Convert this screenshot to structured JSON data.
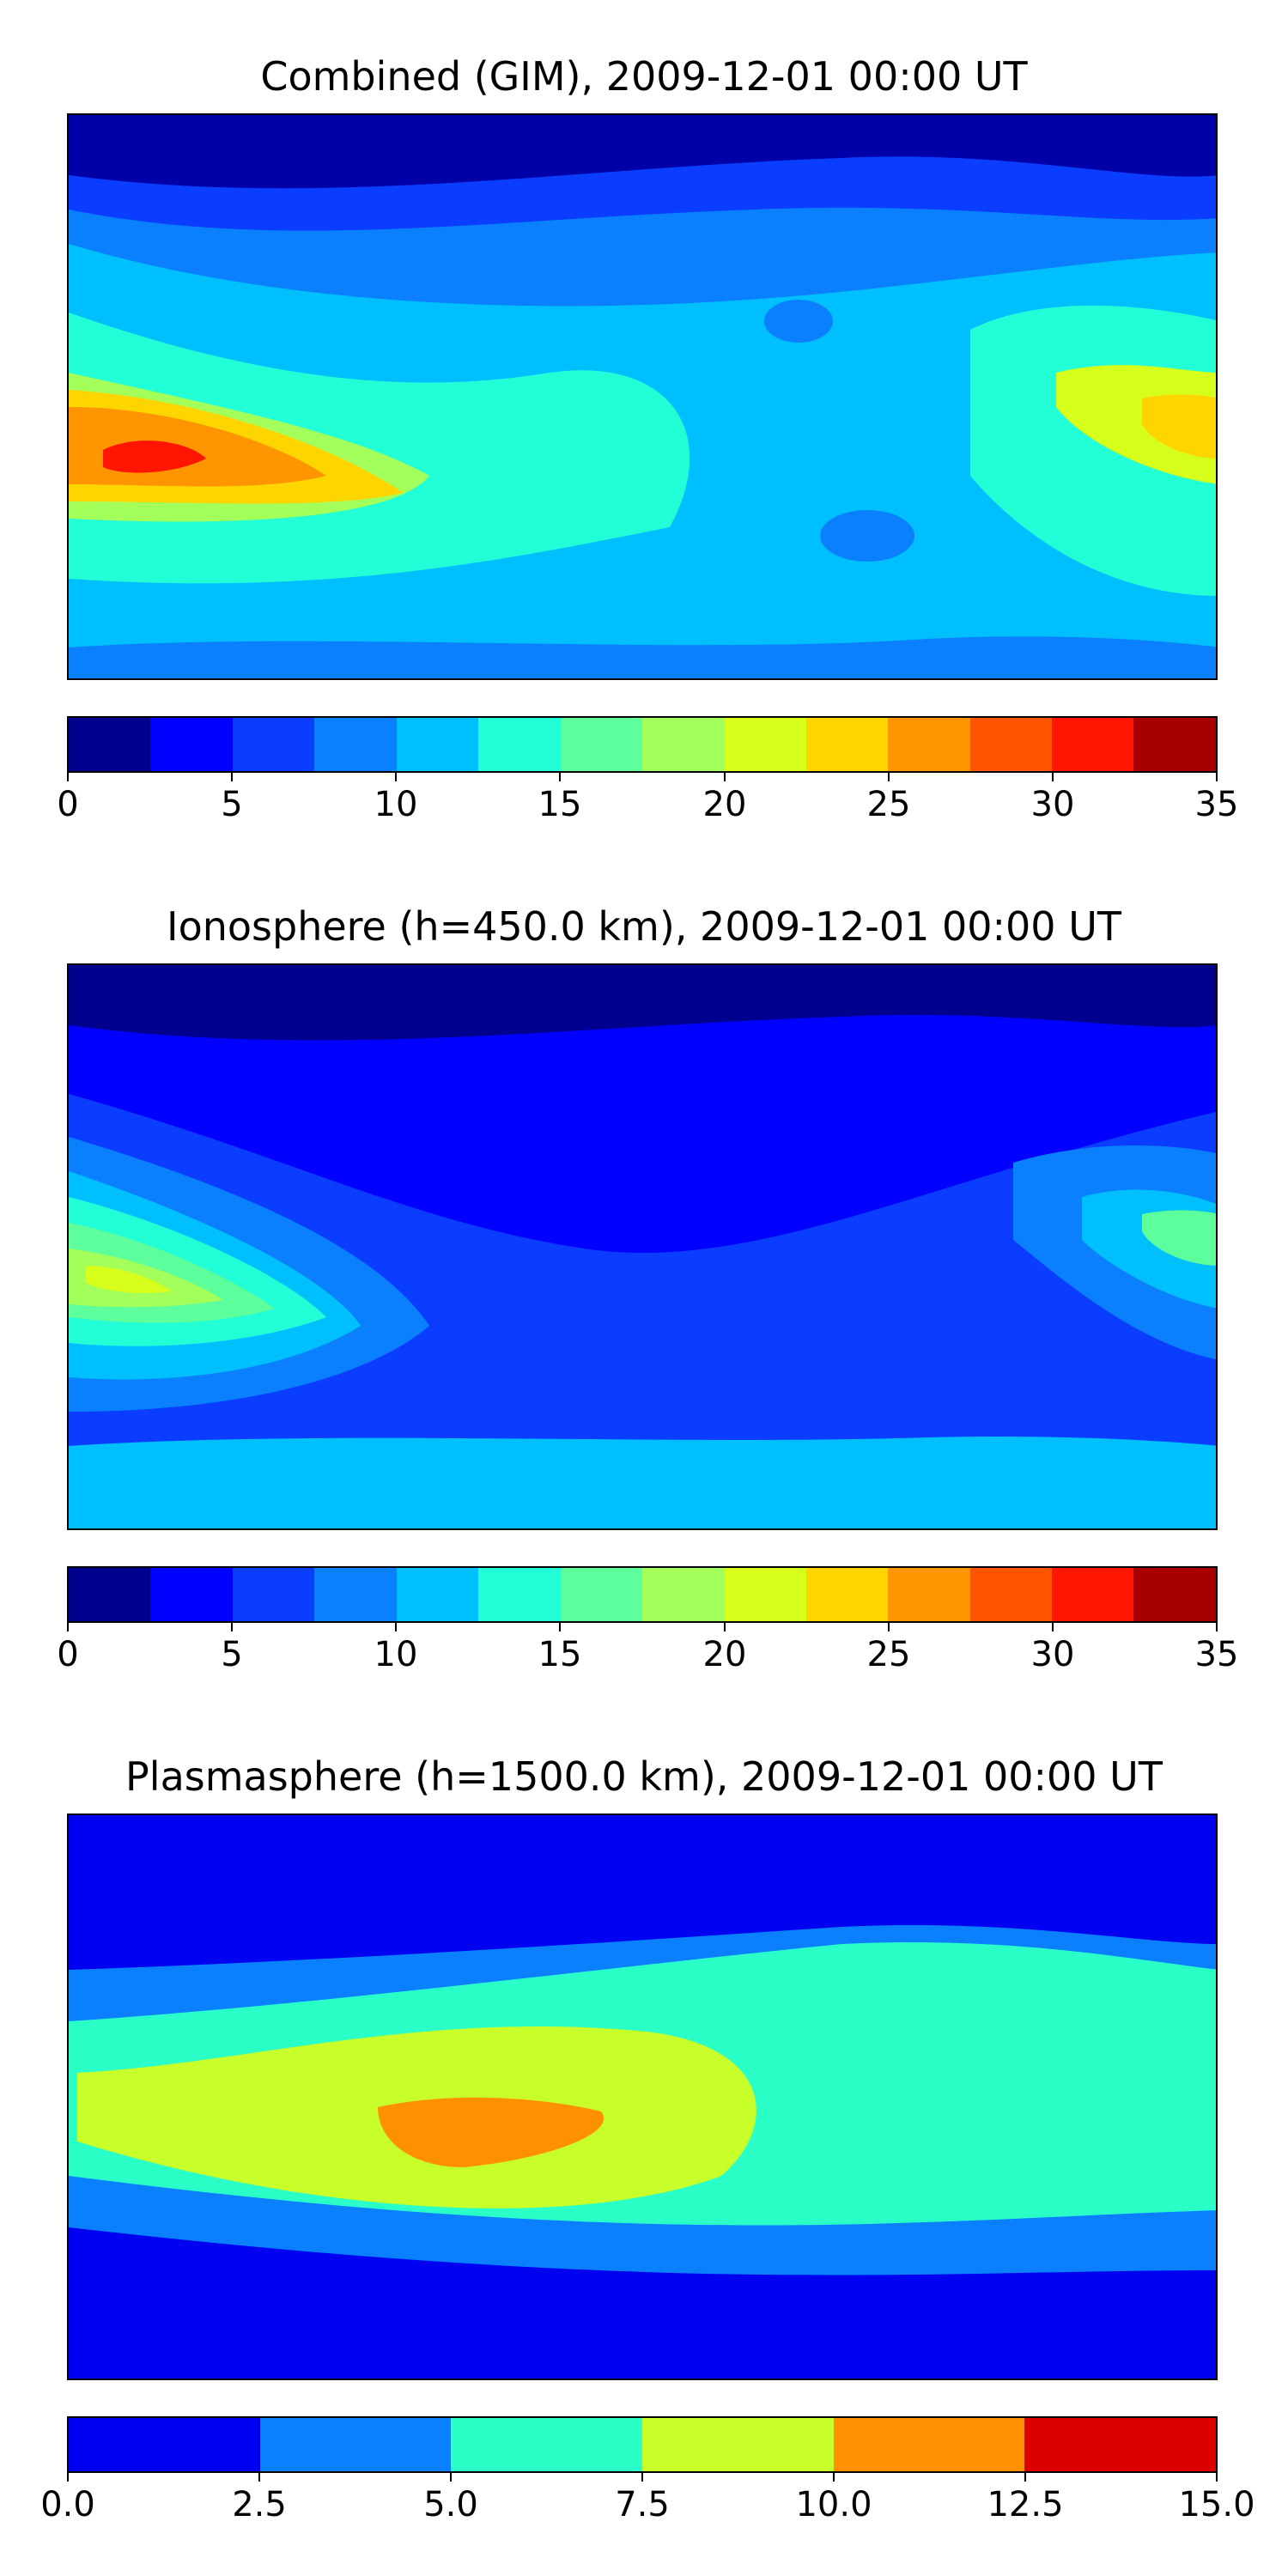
{
  "panels": [
    {
      "title": "Combined (GIM), 2009-12-01 00:00 UT",
      "colorbar": {
        "colors": [
          "#00008f",
          "#0000ff",
          "#0a3dff",
          "#0a80ff",
          "#00bfff",
          "#22ffd6",
          "#5cff9b",
          "#a3ff5a",
          "#d6ff1c",
          "#ffd500",
          "#ff9500",
          "#ff5500",
          "#ff1500",
          "#a80000"
        ],
        "ticks": [
          "0",
          "5",
          "10",
          "15",
          "20",
          "25",
          "30",
          "35"
        ]
      }
    },
    {
      "title": "Ionosphere  (h=450.0 km), 2009-12-01 00:00 UT",
      "colorbar": {
        "colors": [
          "#00008f",
          "#0000ff",
          "#0a3dff",
          "#0a80ff",
          "#00bfff",
          "#22ffd6",
          "#5cff9b",
          "#a3ff5a",
          "#d6ff1c",
          "#ffd500",
          "#ff9500",
          "#ff5500",
          "#ff1500",
          "#a80000"
        ],
        "ticks": [
          "0",
          "5",
          "10",
          "15",
          "20",
          "25",
          "30",
          "35"
        ]
      }
    },
    {
      "title": "Plasmasphere (h=1500.0 km), 2009-12-01 00:00 UT",
      "colorbar": {
        "colors": [
          "#0000f0",
          "#0a80ff",
          "#2affc8",
          "#c8ff2a",
          "#ff9000",
          "#dc0000"
        ],
        "ticks": [
          "0.0",
          "2.5",
          "5.0",
          "7.5",
          "10.0",
          "12.5",
          "15.0"
        ]
      }
    }
  ]
}
